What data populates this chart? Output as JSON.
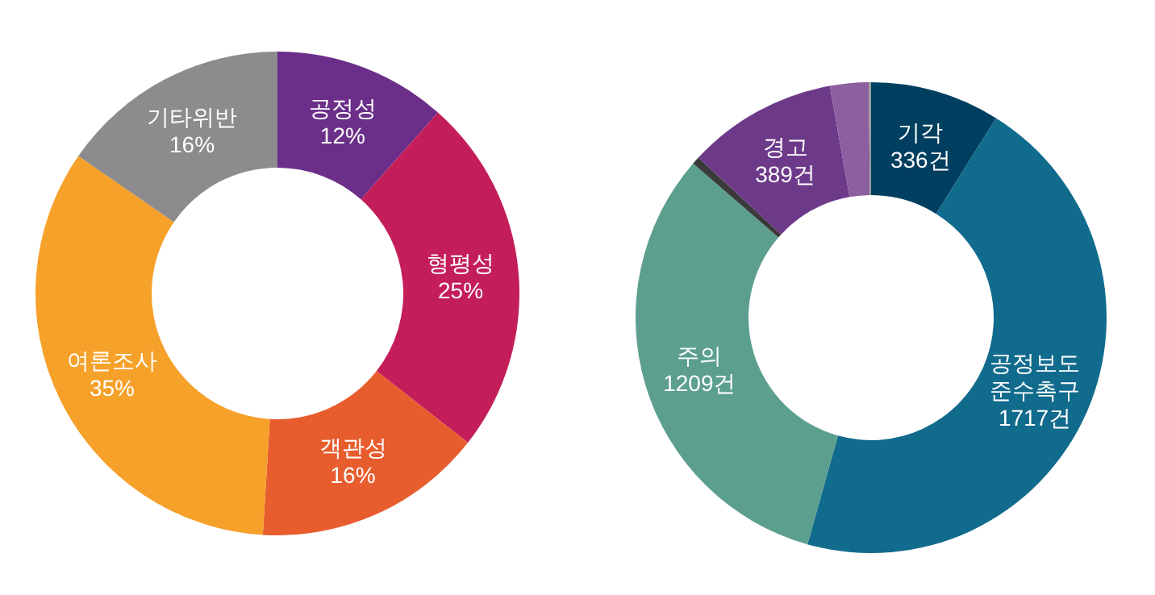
{
  "chart_data": [
    {
      "type": "donut",
      "categories": [
        "공정성",
        "형평성",
        "객관성",
        "여론조사",
        "기타위반"
      ],
      "values": [
        12,
        25,
        16,
        35,
        16
      ],
      "value_labels": [
        "12%",
        "25%",
        "16%",
        "35%",
        "16%"
      ],
      "colors": [
        "#6b2f8a",
        "#c41e5a",
        "#e85d2e",
        "#f5a12a",
        "#8c8b8d"
      ]
    },
    {
      "type": "donut",
      "categories": [
        "기각",
        "공정보도 준수촉구",
        "주의",
        null,
        "경고",
        null,
        null
      ],
      "values": [
        336,
        1717,
        1209,
        20,
        389,
        100,
        6
      ],
      "value_labels": [
        "336건",
        "1717건",
        "1209건",
        null,
        "389건",
        null,
        null
      ],
      "colors": [
        "#003f5f",
        "#116b8c",
        "#5c9f8e",
        "#3a3a3a",
        "#6d3a8a",
        "#8b5fa0",
        "#9a9a9a"
      ]
    }
  ]
}
